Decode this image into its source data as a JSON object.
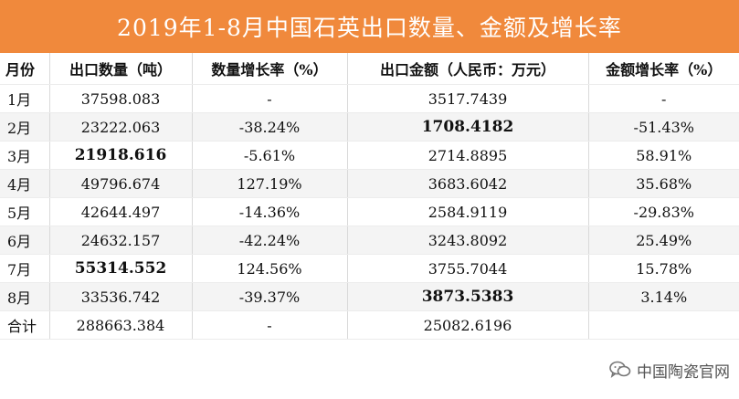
{
  "title": "2019年1-8月中国石英出口数量、金额及增长率",
  "table": {
    "headers": [
      "月份",
      "出口数量（吨）",
      "数量增长率（%）",
      "出口金额（人民币：万元）",
      "金额增长率（%）"
    ],
    "rows": [
      {
        "month": "1月",
        "qty": "37598.083",
        "qty_growth": "-",
        "amount": "3517.7439",
        "amount_growth": "-",
        "bold_qty": false,
        "bold_amount": false
      },
      {
        "month": "2月",
        "qty": "23222.063",
        "qty_growth": "-38.24%",
        "amount": "1708.4182",
        "amount_growth": "-51.43%",
        "bold_qty": false,
        "bold_amount": true
      },
      {
        "month": "3月",
        "qty": "21918.616",
        "qty_growth": "-5.61%",
        "amount": "2714.8895",
        "amount_growth": "58.91%",
        "bold_qty": true,
        "bold_amount": false
      },
      {
        "month": "4月",
        "qty": "49796.674",
        "qty_growth": "127.19%",
        "amount": "3683.6042",
        "amount_growth": "35.68%",
        "bold_qty": false,
        "bold_amount": false
      },
      {
        "month": "5月",
        "qty": "42644.497",
        "qty_growth": "-14.36%",
        "amount": "2584.9119",
        "amount_growth": "-29.83%",
        "bold_qty": false,
        "bold_amount": false
      },
      {
        "month": "6月",
        "qty": "24632.157",
        "qty_growth": "-42.24%",
        "amount": "3243.8092",
        "amount_growth": "25.49%",
        "bold_qty": false,
        "bold_amount": false
      },
      {
        "month": "7月",
        "qty": "55314.552",
        "qty_growth": "124.56%",
        "amount": "3755.7044",
        "amount_growth": "15.78%",
        "bold_qty": true,
        "bold_amount": false
      },
      {
        "month": "8月",
        "qty": "33536.742",
        "qty_growth": "-39.37%",
        "amount": "3873.5383",
        "amount_growth": "3.14%",
        "bold_qty": false,
        "bold_amount": true
      },
      {
        "month": "合计",
        "qty": "288663.384",
        "qty_growth": "-",
        "amount": "25082.6196",
        "amount_growth": "",
        "bold_qty": false,
        "bold_amount": false
      }
    ]
  },
  "watermark": {
    "text": "中国陶瓷官网",
    "icon": "wechat-icon"
  },
  "colors": {
    "title_bg": "#f0893c",
    "title_text": "#ffffff",
    "alt_row": "#f4f4f4"
  }
}
